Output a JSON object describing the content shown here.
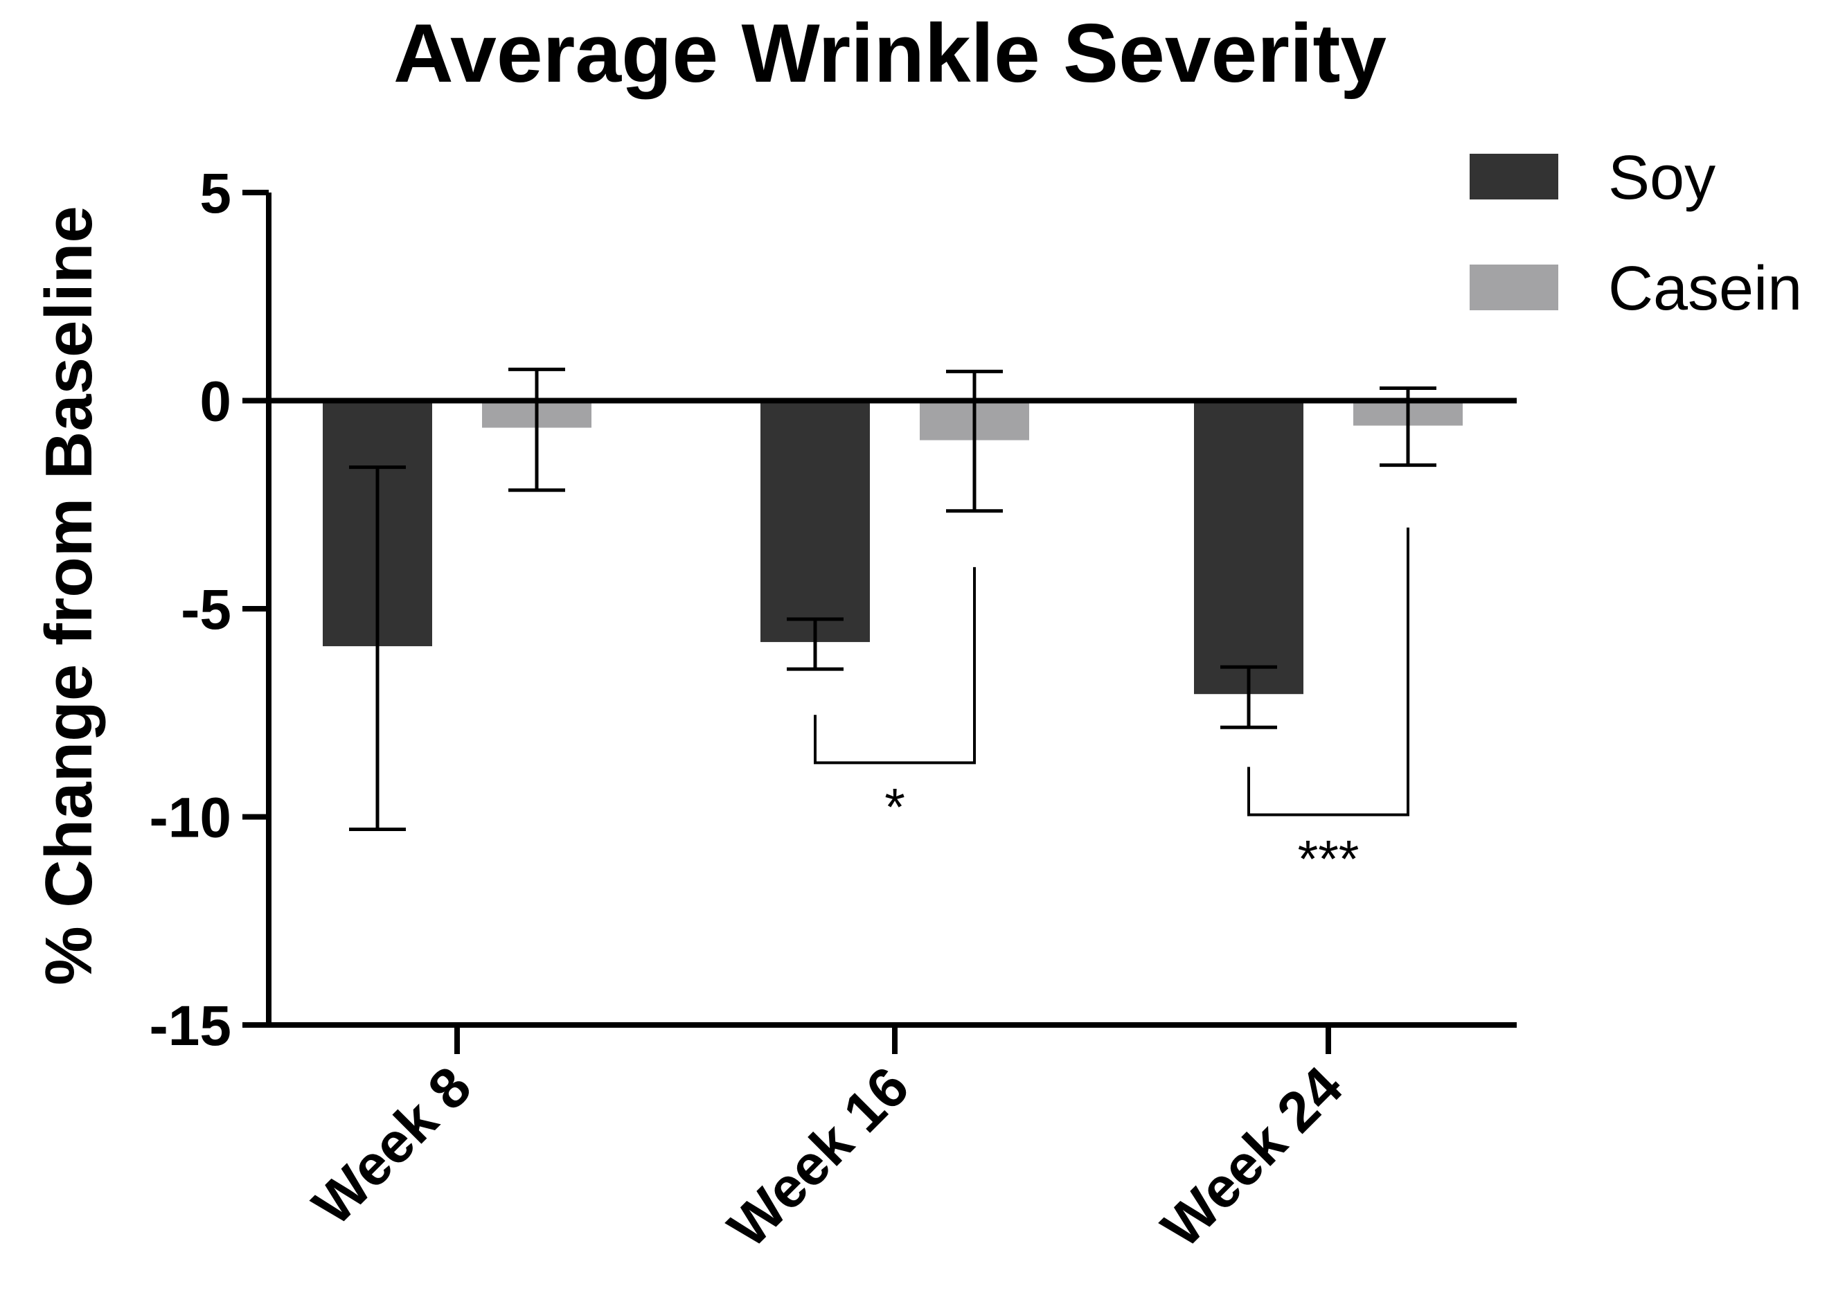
{
  "chart_data": {
    "type": "bar",
    "title": "Average Wrinkle Severity",
    "xlabel": "",
    "ylabel": "% Change from Baseline",
    "ylim": [
      -15,
      5
    ],
    "yticks": [
      5,
      0,
      -5,
      -10,
      -15
    ],
    "ytick_labels": [
      "5",
      "0",
      "-5",
      "-10",
      "-15"
    ],
    "categories": [
      "Week 8",
      "Week 16",
      "Week 24"
    ],
    "series": [
      {
        "name": "Soy",
        "color": "#333333",
        "values": [
          -5.9,
          -5.8,
          -7.05
        ],
        "error_low": [
          -10.3,
          -6.45,
          -7.85
        ],
        "error_high": [
          -1.6,
          -5.25,
          -6.4
        ]
      },
      {
        "name": "Casein",
        "color": "#a3a3a5",
        "values": [
          -0.65,
          -0.95,
          -0.6
        ],
        "error_low": [
          -2.15,
          -2.65,
          -1.55
        ],
        "error_high": [
          0.75,
          0.7,
          0.3
        ]
      }
    ],
    "significance": [
      {
        "category_index": 1,
        "label": "*",
        "soy_arm_top": -7.55,
        "casein_arm_top": -4.0,
        "bracket_y": -8.7
      },
      {
        "category_index": 2,
        "label": "***",
        "soy_arm_top": -8.8,
        "casein_arm_top": -3.05,
        "bracket_y": -9.95
      }
    ],
    "legend_position": "top-right",
    "grid": false
  }
}
